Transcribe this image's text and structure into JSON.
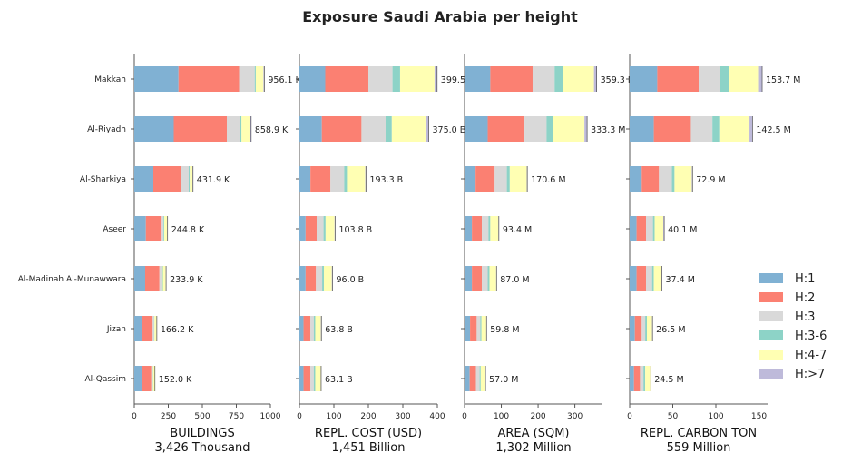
{
  "title": "Exposure Saudi Arabia per height",
  "chart_data": {
    "type": "bar",
    "orientation": "horizontal",
    "stacked": true,
    "title": "Exposure Saudi Arabia per height",
    "categories": [
      "Makkah",
      "Al-Riyadh",
      "Al-Sharkiya",
      "Aseer",
      "Al-Madinah Al-Munawwara",
      "Jizan",
      "Al-Qassim"
    ],
    "series_names": [
      "H:1",
      "H:2",
      "H:3",
      "H:3-6",
      "H:4-7",
      "H:>7"
    ],
    "colors": [
      "#80b1d3",
      "#fb8072",
      "#d9d9d9",
      "#8dd3c7",
      "#ffffb3",
      "#bebada"
    ],
    "legend_position": "right",
    "panels": [
      {
        "xlabel": "BUILDINGS",
        "subtitle": "3,426 Thousand",
        "xlim": [
          0,
          1000
        ],
        "xticks": [
          0,
          250,
          500,
          750,
          1000
        ],
        "values": [
          [
            325,
            445,
            115,
            8,
            56,
            7
          ],
          [
            290,
            390,
            100,
            8,
            64,
            7
          ],
          [
            140,
            200,
            60,
            8,
            20,
            4
          ],
          [
            85,
            110,
            20,
            5,
            22,
            3
          ],
          [
            80,
            105,
            20,
            5,
            21,
            3
          ],
          [
            60,
            75,
            10,
            3,
            15,
            3
          ],
          [
            55,
            70,
            10,
            3,
            12,
            2
          ]
        ],
        "totals": [
          "956.1 K",
          "858.9 K",
          "431.9 K",
          "244.8 K",
          "233.9 K",
          "166.2 K",
          "152.0 K"
        ]
      },
      {
        "xlabel": "REPL. COST (USD)",
        "subtitle": "1,451 Billion",
        "xlim": [
          0,
          400
        ],
        "xticks": [
          0,
          100,
          200,
          300,
          400
        ],
        "values": [
          [
            75,
            125,
            70,
            22,
            100,
            7.5
          ],
          [
            65,
            115,
            70,
            18,
            100,
            7
          ],
          [
            32,
            58,
            40,
            8,
            53,
            2.3
          ],
          [
            18,
            32,
            20,
            6,
            26,
            1.8
          ],
          [
            18,
            30,
            18,
            5,
            23,
            2
          ],
          [
            12,
            20,
            10,
            4,
            16,
            1.8
          ],
          [
            12,
            20,
            10,
            4,
            16,
            1.1
          ]
        ],
        "totals": [
          "399.5 B",
          "375.0 B",
          "193.3 B",
          "103.8 B",
          "96.0 B",
          "63.8 B",
          "63.1 B"
        ]
      },
      {
        "xlabel": "AREA (SQM)",
        "subtitle": "1,302 Million",
        "xlim": [
          0,
          375
        ],
        "xticks": [
          0,
          100,
          200,
          300
        ],
        "values": [
          [
            70,
            115,
            60,
            22,
            85,
            7.3
          ],
          [
            63,
            100,
            60,
            18,
            85,
            7.3
          ],
          [
            30,
            52,
            33,
            8,
            46,
            1.6
          ],
          [
            20,
            27,
            18,
            5,
            22,
            1.4
          ],
          [
            20,
            27,
            16,
            5,
            18,
            1
          ],
          [
            15,
            18,
            10,
            3,
            13,
            0.8
          ],
          [
            14,
            17,
            10,
            3,
            12,
            1
          ]
        ],
        "totals": [
          "359.3 M",
          "333.3 M",
          "170.6 M",
          "93.4 M",
          "87.0 M",
          "59.8 M",
          "57.0 M"
        ]
      },
      {
        "xlabel": "REPL. CARBON TON",
        "subtitle": "559 Million",
        "xlim": [
          0,
          160
        ],
        "xticks": [
          0,
          50,
          100,
          150
        ],
        "values": [
          [
            32,
            48,
            25,
            10,
            34,
            4.7
          ],
          [
            28,
            43,
            25,
            8,
            35,
            3.5
          ],
          [
            14,
            20,
            15,
            3,
            20,
            0.9
          ],
          [
            8,
            11,
            8,
            2,
            10,
            1.1
          ],
          [
            8,
            11,
            7,
            2,
            9,
            0.4
          ],
          [
            6,
            8,
            4,
            2,
            6,
            0.5
          ],
          [
            5,
            7,
            4,
            2,
            6,
            0.5
          ]
        ],
        "totals": [
          "153.7 M",
          "142.5 M",
          "72.9 M",
          "40.1 M",
          "37.4 M",
          "26.5 M",
          "24.5 M"
        ]
      }
    ]
  }
}
